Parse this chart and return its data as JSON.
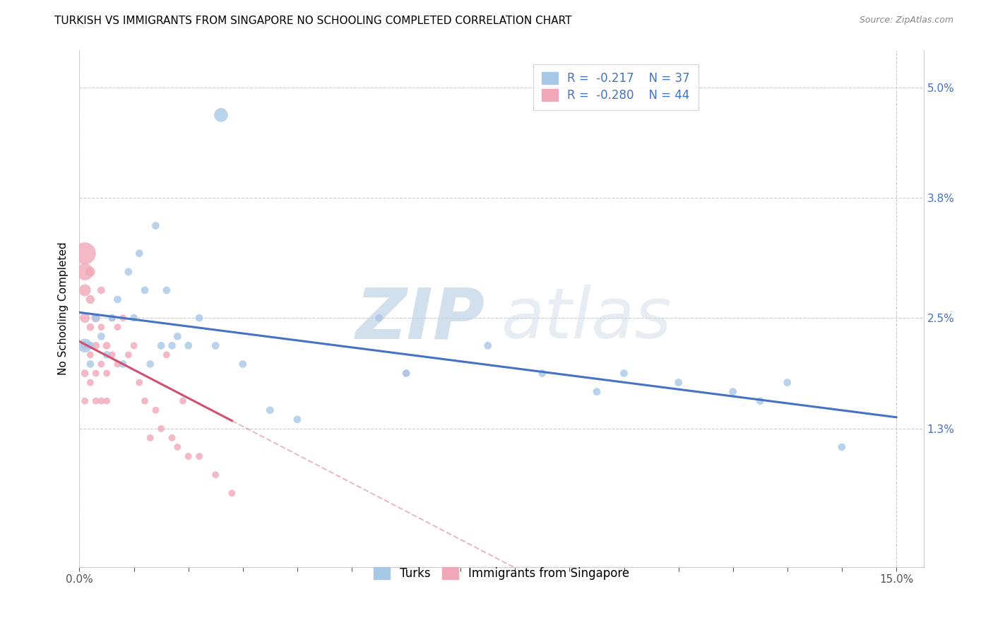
{
  "title": "TURKISH VS IMMIGRANTS FROM SINGAPORE NO SCHOOLING COMPLETED CORRELATION CHART",
  "source": "Source: ZipAtlas.com",
  "ylabel": "No Schooling Completed",
  "xlim": [
    0.0,
    0.155
  ],
  "ylim": [
    -0.002,
    0.054
  ],
  "xtick_labels": [
    "0.0%",
    "",
    "",
    "",
    "",
    "",
    "",
    "",
    "",
    "",
    "",
    "",
    "",
    "",
    "",
    "15.0%"
  ],
  "xtick_vals": [
    0.0,
    0.01,
    0.02,
    0.03,
    0.04,
    0.05,
    0.06,
    0.07,
    0.08,
    0.09,
    0.1,
    0.11,
    0.12,
    0.13,
    0.14,
    0.15
  ],
  "ytick_labels": [
    "1.3%",
    "2.5%",
    "3.8%",
    "5.0%"
  ],
  "ytick_vals": [
    0.013,
    0.025,
    0.038,
    0.05
  ],
  "watermark_zip": "ZIP",
  "watermark_atlas": "atlas",
  "legend_r1_val": "-0.217",
  "legend_n1": "N = 37",
  "legend_r2_val": "-0.280",
  "legend_n2": "N = 44",
  "blue_color": "#a8c8e8",
  "pink_color": "#f0a8b8",
  "line_blue": "#4472c4",
  "line_pink": "#d05070",
  "turks_x": [
    0.001,
    0.002,
    0.002,
    0.003,
    0.004,
    0.005,
    0.006,
    0.007,
    0.008,
    0.009,
    0.01,
    0.011,
    0.012,
    0.013,
    0.014,
    0.015,
    0.016,
    0.017,
    0.018,
    0.02,
    0.022,
    0.025,
    0.026,
    0.03,
    0.035,
    0.04,
    0.055,
    0.06,
    0.075,
    0.085,
    0.095,
    0.1,
    0.11,
    0.12,
    0.125,
    0.13,
    0.14
  ],
  "turks_y": [
    0.022,
    0.022,
    0.02,
    0.025,
    0.023,
    0.021,
    0.025,
    0.027,
    0.02,
    0.03,
    0.025,
    0.032,
    0.028,
    0.02,
    0.035,
    0.022,
    0.028,
    0.022,
    0.023,
    0.022,
    0.025,
    0.022,
    0.047,
    0.02,
    0.015,
    0.014,
    0.025,
    0.019,
    0.022,
    0.019,
    0.017,
    0.019,
    0.018,
    0.017,
    0.016,
    0.018,
    0.011
  ],
  "turks_sizes": [
    200,
    60,
    60,
    60,
    60,
    60,
    60,
    60,
    60,
    60,
    60,
    60,
    60,
    60,
    60,
    60,
    60,
    60,
    60,
    60,
    60,
    60,
    200,
    60,
    60,
    60,
    60,
    60,
    60,
    60,
    60,
    60,
    60,
    60,
    60,
    60,
    60
  ],
  "singapore_x": [
    0.001,
    0.001,
    0.001,
    0.001,
    0.001,
    0.001,
    0.001,
    0.002,
    0.002,
    0.002,
    0.002,
    0.002,
    0.003,
    0.003,
    0.003,
    0.003,
    0.004,
    0.004,
    0.004,
    0.004,
    0.005,
    0.005,
    0.005,
    0.006,
    0.006,
    0.007,
    0.007,
    0.008,
    0.009,
    0.01,
    0.011,
    0.012,
    0.013,
    0.014,
    0.015,
    0.016,
    0.017,
    0.018,
    0.019,
    0.02,
    0.022,
    0.025,
    0.028,
    0.06
  ],
  "singapore_y": [
    0.032,
    0.03,
    0.028,
    0.025,
    0.022,
    0.019,
    0.016,
    0.03,
    0.027,
    0.024,
    0.021,
    0.018,
    0.025,
    0.022,
    0.019,
    0.016,
    0.028,
    0.024,
    0.02,
    0.016,
    0.022,
    0.019,
    0.016,
    0.025,
    0.021,
    0.024,
    0.02,
    0.025,
    0.021,
    0.022,
    0.018,
    0.016,
    0.012,
    0.015,
    0.013,
    0.021,
    0.012,
    0.011,
    0.016,
    0.01,
    0.01,
    0.008,
    0.006,
    0.019
  ],
  "singapore_sizes": [
    500,
    300,
    150,
    100,
    80,
    60,
    50,
    100,
    80,
    60,
    50,
    50,
    80,
    60,
    50,
    50,
    60,
    50,
    50,
    50,
    60,
    50,
    50,
    50,
    50,
    50,
    50,
    50,
    50,
    50,
    50,
    50,
    50,
    50,
    50,
    50,
    50,
    50,
    50,
    50,
    50,
    50,
    50,
    50
  ],
  "bg_color": "#ffffff",
  "grid_color": "#cccccc",
  "tick_fontsize": 11,
  "label_fontsize": 11,
  "title_fontsize": 11
}
